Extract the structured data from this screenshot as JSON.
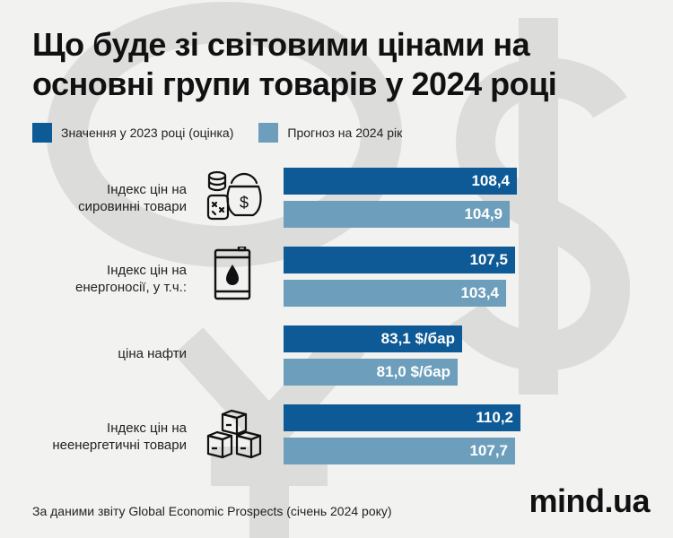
{
  "chart_data": {
    "type": "bar",
    "orientation": "horizontal",
    "title": "Що буде зі світовими цінами на основні групи товарів у 2024 році",
    "categories": [
      "Індекс цін на сировинні товари",
      "Індекс цін на енергоносії, у т.ч.:",
      "ціна нафти",
      "Індекс цін на неенергетичні товари"
    ],
    "category_lines": [
      [
        "Індекс цін на",
        "сировинні товари"
      ],
      [
        "Індекс цін на",
        "енергоносії, у т.ч.:"
      ],
      [
        "ціна нафти"
      ],
      [
        "Індекс цін на",
        "неенергетичні товари"
      ]
    ],
    "series": [
      {
        "name": "Значення у 2023 році (оцінка)",
        "color": "#0d5a96",
        "values": [
          108.4,
          107.5,
          83.1,
          110.2
        ],
        "labels": [
          "108,4",
          "107,5",
          "83,1 $/бар",
          "110,2"
        ]
      },
      {
        "name": "Прогноз на 2024 рік",
        "color": "#6d9fbd",
        "values": [
          104.9,
          103.4,
          81.0,
          107.7
        ],
        "labels": [
          "104,9",
          "103,4",
          "81,0 $/бар",
          "107,7"
        ]
      }
    ],
    "legend_position": "top-left",
    "grid": false,
    "icons": [
      "commodities-icon",
      "oil-barrel-icon",
      "",
      "boxes-icon"
    ]
  },
  "source": "За даними звіту Global Economic Prospects (січень 2024 року)",
  "brand": "mind.ua"
}
